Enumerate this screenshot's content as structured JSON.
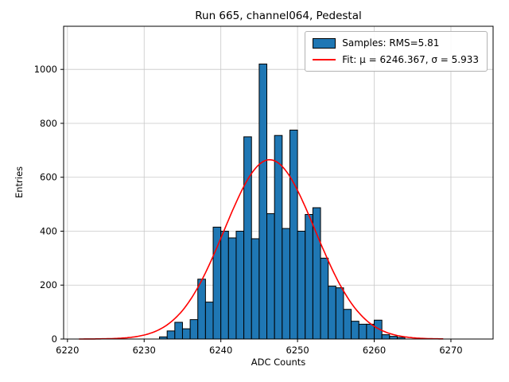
{
  "title": "Run 665, channel064, Pedestal",
  "xlabel": "ADC Counts",
  "ylabel": "Entries",
  "legend": {
    "samples_label": "Samples: RMS=5.81",
    "fit_label": "Fit: μ = 6246.367, σ = 5.933"
  },
  "colors": {
    "bar_fill": "#1f77b4",
    "bar_edge": "#000000",
    "fit_line": "#ff0000",
    "grid": "#c8c8c8"
  },
  "chart_data": {
    "type": "bar",
    "title": "Run 665, channel064, Pedestal",
    "xlabel": "ADC Counts",
    "ylabel": "Entries",
    "grid": true,
    "legend_position": "upper right",
    "xlim": [
      6219.5,
      6275.5
    ],
    "ylim": [
      0,
      1160
    ],
    "xticks": [
      6220,
      6230,
      6240,
      6250,
      6260,
      6270
    ],
    "yticks": [
      0,
      200,
      400,
      600,
      800,
      1000
    ],
    "bin_width": 1,
    "bin_left_edges": [
      6232,
      6233,
      6234,
      6235,
      6236,
      6237,
      6238,
      6239,
      6240,
      6241,
      6242,
      6243,
      6244,
      6245,
      6246,
      6247,
      6248,
      6249,
      6250,
      6251,
      6252,
      6253,
      6254,
      6255,
      6256,
      6257,
      6258,
      6259,
      6260,
      6261,
      6262,
      6263
    ],
    "values": [
      8,
      30,
      62,
      38,
      72,
      222,
      137,
      415,
      400,
      375,
      400,
      750,
      372,
      1020,
      465,
      755,
      410,
      775,
      400,
      462,
      487,
      300,
      196,
      190,
      110,
      66,
      55,
      55,
      70,
      16,
      10,
      6
    ],
    "series_label": "Samples: RMS=5.81",
    "rms": 5.81,
    "fit": {
      "type": "gaussian",
      "label": "Fit: μ = 6246.367, σ = 5.933",
      "mu": 6246.367,
      "sigma": 5.933,
      "amplitude": 665,
      "x_start": 6221.5,
      "x_end": 6269
    }
  }
}
